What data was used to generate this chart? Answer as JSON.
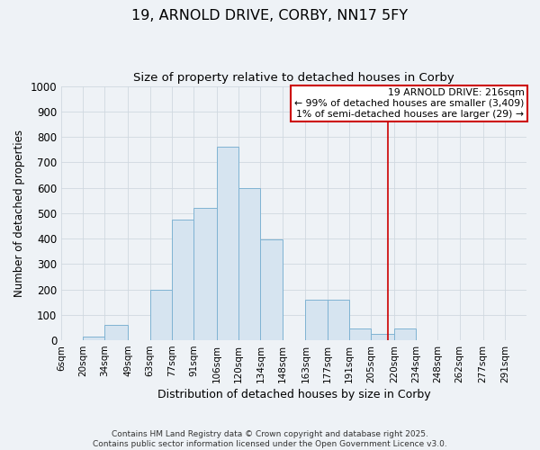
{
  "title": "19, ARNOLD DRIVE, CORBY, NN17 5FY",
  "subtitle": "Size of property relative to detached houses in Corby",
  "xlabel": "Distribution of detached houses by size in Corby",
  "ylabel": "Number of detached properties",
  "bin_labels": [
    "6sqm",
    "20sqm",
    "34sqm",
    "49sqm",
    "63sqm",
    "77sqm",
    "91sqm",
    "106sqm",
    "120sqm",
    "134sqm",
    "148sqm",
    "163sqm",
    "177sqm",
    "191sqm",
    "205sqm",
    "220sqm",
    "234sqm",
    "248sqm",
    "262sqm",
    "277sqm",
    "291sqm"
  ],
  "bin_edges": [
    6,
    20,
    34,
    49,
    63,
    77,
    91,
    106,
    120,
    134,
    148,
    163,
    177,
    191,
    205,
    220,
    234,
    248,
    262,
    277,
    291
  ],
  "bar_heights": [
    0,
    15,
    60,
    0,
    200,
    475,
    520,
    760,
    600,
    395,
    0,
    160,
    160,
    45,
    25,
    45,
    0,
    0,
    0,
    0,
    0
  ],
  "bar_color": "#d6e4f0",
  "bar_edge_color": "#7fb3d3",
  "vline_x": 216,
  "vline_color": "#cc0000",
  "annotation_title": "19 ARNOLD DRIVE: 216sqm",
  "annotation_line1": "← 99% of detached houses are smaller (3,409)",
  "annotation_line2": "1% of semi-detached houses are larger (29) →",
  "ylim": [
    0,
    1000
  ],
  "yticks": [
    0,
    100,
    200,
    300,
    400,
    500,
    600,
    700,
    800,
    900,
    1000
  ],
  "grid_color": "#d0d8e0",
  "bg_color": "#eef2f6",
  "footer1": "Contains HM Land Registry data © Crown copyright and database right 2025.",
  "footer2": "Contains public sector information licensed under the Open Government Licence v3.0."
}
